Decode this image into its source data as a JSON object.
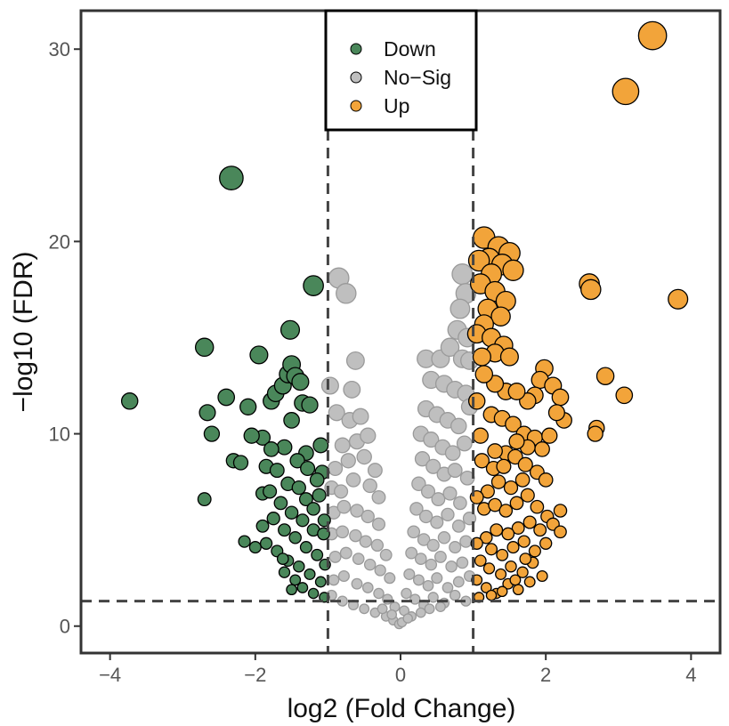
{
  "chart_data": {
    "type": "scatter",
    "subtype": "volcano",
    "title": "",
    "xlabel": "log2 (Fold Change)",
    "ylabel": "−log10 (FDR)",
    "xlim": [
      -4.4,
      4.4
    ],
    "ylim": [
      -1.4,
      32
    ],
    "xticks": [
      -4,
      -2,
      0,
      2,
      4
    ],
    "yticks": [
      0,
      10,
      20,
      30
    ],
    "x_tick_labels": [
      "−4",
      "−2",
      "0",
      "2",
      "4"
    ],
    "y_tick_labels": [
      "0",
      "10",
      "20",
      "30"
    ],
    "grid": false,
    "thresholds": {
      "log2fc": [
        -1,
        1
      ],
      "neglog10_fdr": 1.3
    },
    "legend": {
      "position": "top-center",
      "boxed": true
    },
    "colors": {
      "Down": "#4a875a",
      "No-Sig": "#bfbfbf",
      "Up": "#f2a43a",
      "outline_sig": "#000000",
      "outline_nosig": "#9a9a9a",
      "axis": "#333333",
      "threshold_line": "#444444"
    },
    "series": [
      {
        "name": "Down",
        "legend_label": "Down",
        "points": [
          [
            -3.73,
            11.7
          ],
          [
            -2.7,
            14.5
          ],
          [
            -2.66,
            11.1
          ],
          [
            -2.6,
            10.0
          ],
          [
            -2.7,
            6.6
          ],
          [
            -2.33,
            23.3
          ],
          [
            -2.4,
            11.9
          ],
          [
            -2.3,
            8.6
          ],
          [
            -2.2,
            8.5
          ],
          [
            -2.1,
            11.4
          ],
          [
            -1.95,
            14.1
          ],
          [
            -2.15,
            4.4
          ],
          [
            -2.0,
            4.1
          ],
          [
            -1.9,
            6.9
          ],
          [
            -1.85,
            8.3
          ],
          [
            -1.78,
            11.7
          ],
          [
            -1.72,
            12.1
          ],
          [
            -1.62,
            12.5
          ],
          [
            -1.55,
            13.1
          ],
          [
            -1.5,
            13.6
          ],
          [
            -1.45,
            13.0
          ],
          [
            -1.38,
            12.7
          ],
          [
            -1.52,
            15.4
          ],
          [
            -1.2,
            17.7
          ],
          [
            -1.35,
            11.6
          ],
          [
            -1.5,
            10.7
          ],
          [
            -1.25,
            11.5
          ],
          [
            -1.1,
            9.4
          ],
          [
            -1.3,
            9.0
          ],
          [
            -1.6,
            9.3
          ],
          [
            -1.7,
            8.1
          ],
          [
            -1.55,
            7.4
          ],
          [
            -1.4,
            7.2
          ],
          [
            -1.3,
            6.6
          ],
          [
            -1.2,
            6.1
          ],
          [
            -1.8,
            7.0
          ],
          [
            -1.65,
            6.4
          ],
          [
            -1.5,
            5.9
          ],
          [
            -1.35,
            5.5
          ],
          [
            -1.2,
            5.0
          ],
          [
            -1.75,
            5.6
          ],
          [
            -1.6,
            5.0
          ],
          [
            -1.45,
            4.6
          ],
          [
            -1.3,
            4.1
          ],
          [
            -1.15,
            3.7
          ],
          [
            -1.9,
            5.2
          ],
          [
            -1.85,
            4.3
          ],
          [
            -1.7,
            3.9
          ],
          [
            -1.55,
            3.4
          ],
          [
            -1.4,
            3.1
          ],
          [
            -1.25,
            2.7
          ],
          [
            -1.1,
            2.3
          ],
          [
            -1.6,
            2.8
          ],
          [
            -1.45,
            2.4
          ],
          [
            -1.35,
            2.0
          ],
          [
            -1.2,
            1.7
          ],
          [
            -1.05,
            1.5
          ],
          [
            -1.12,
            6.8
          ],
          [
            -1.08,
            8.0
          ],
          [
            -1.06,
            4.8
          ],
          [
            -1.04,
            3.2
          ],
          [
            -1.9,
            9.8
          ],
          [
            -2.05,
            9.9
          ],
          [
            -1.78,
            9.2
          ],
          [
            -1.42,
            8.6
          ],
          [
            -1.28,
            8.2
          ],
          [
            -1.15,
            7.6
          ],
          [
            -1.62,
            3.5
          ],
          [
            -1.5,
            1.9
          ],
          [
            -1.05,
            5.5
          ]
        ]
      },
      {
        "name": "No-Sig",
        "legend_label": "No−Sig",
        "points": [
          [
            -0.85,
            18.1
          ],
          [
            -0.75,
            17.3
          ],
          [
            -0.62,
            13.8
          ],
          [
            -0.67,
            12.3
          ],
          [
            -0.97,
            12.5
          ],
          [
            -0.88,
            11.1
          ],
          [
            -0.7,
            10.7
          ],
          [
            -0.55,
            10.9
          ],
          [
            -0.8,
            9.4
          ],
          [
            -0.6,
            9.6
          ],
          [
            -0.45,
            9.9
          ],
          [
            -0.9,
            8.2
          ],
          [
            -0.72,
            8.6
          ],
          [
            -0.5,
            8.8
          ],
          [
            -0.35,
            8.1
          ],
          [
            -0.95,
            7.2
          ],
          [
            -0.82,
            7.0
          ],
          [
            -0.65,
            7.6
          ],
          [
            -0.42,
            7.3
          ],
          [
            -0.3,
            6.7
          ],
          [
            -0.92,
            5.9
          ],
          [
            -0.78,
            6.2
          ],
          [
            -0.6,
            6.0
          ],
          [
            -0.45,
            5.7
          ],
          [
            -0.3,
            5.3
          ],
          [
            -0.95,
            4.8
          ],
          [
            -0.8,
            4.9
          ],
          [
            -0.62,
            4.7
          ],
          [
            -0.48,
            4.4
          ],
          [
            -0.32,
            4.2
          ],
          [
            -0.2,
            3.7
          ],
          [
            -0.9,
            3.6
          ],
          [
            -0.75,
            3.8
          ],
          [
            -0.58,
            3.5
          ],
          [
            -0.42,
            3.2
          ],
          [
            -0.28,
            2.9
          ],
          [
            -0.15,
            2.5
          ],
          [
            -0.92,
            2.4
          ],
          [
            -0.78,
            2.6
          ],
          [
            -0.6,
            2.2
          ],
          [
            -0.45,
            2.0
          ],
          [
            -0.3,
            1.7
          ],
          [
            -0.18,
            1.4
          ],
          [
            -0.08,
            1.0
          ],
          [
            -0.95,
            1.6
          ],
          [
            -0.8,
            1.3
          ],
          [
            -0.65,
            1.1
          ],
          [
            -0.5,
            0.9
          ],
          [
            -0.35,
            0.7
          ],
          [
            -0.2,
            0.5
          ],
          [
            -0.1,
            0.3
          ],
          [
            -0.02,
            0.1
          ],
          [
            -0.25,
            0.9
          ],
          [
            -0.12,
            0.6
          ],
          [
            0.85,
            18.3
          ],
          [
            0.9,
            17.3
          ],
          [
            0.82,
            16.5
          ],
          [
            0.78,
            15.4
          ],
          [
            0.92,
            15.0
          ],
          [
            0.35,
            13.9
          ],
          [
            0.55,
            13.9
          ],
          [
            0.68,
            14.5
          ],
          [
            0.85,
            13.9
          ],
          [
            0.95,
            13.8
          ],
          [
            0.42,
            12.8
          ],
          [
            0.6,
            12.6
          ],
          [
            0.75,
            12.3
          ],
          [
            0.9,
            12.1
          ],
          [
            0.35,
            11.3
          ],
          [
            0.5,
            11.0
          ],
          [
            0.65,
            10.7
          ],
          [
            0.8,
            10.4
          ],
          [
            0.95,
            11.4
          ],
          [
            0.28,
            10.0
          ],
          [
            0.42,
            9.7
          ],
          [
            0.58,
            9.3
          ],
          [
            0.72,
            9.0
          ],
          [
            0.88,
            9.5
          ],
          [
            0.3,
            8.7
          ],
          [
            0.45,
            8.3
          ],
          [
            0.6,
            7.9
          ],
          [
            0.75,
            8.1
          ],
          [
            0.92,
            7.7
          ],
          [
            0.25,
            7.4
          ],
          [
            0.38,
            7.0
          ],
          [
            0.52,
            6.6
          ],
          [
            0.68,
            6.9
          ],
          [
            0.82,
            6.4
          ],
          [
            0.22,
            6.1
          ],
          [
            0.35,
            5.7
          ],
          [
            0.5,
            5.4
          ],
          [
            0.65,
            5.8
          ],
          [
            0.8,
            5.2
          ],
          [
            0.95,
            5.6
          ],
          [
            0.18,
            4.9
          ],
          [
            0.32,
            4.5
          ],
          [
            0.45,
            4.2
          ],
          [
            0.6,
            4.6
          ],
          [
            0.75,
            4.1
          ],
          [
            0.9,
            4.4
          ],
          [
            0.15,
            3.8
          ],
          [
            0.28,
            3.5
          ],
          [
            0.42,
            3.2
          ],
          [
            0.55,
            3.6
          ],
          [
            0.7,
            3.1
          ],
          [
            0.85,
            3.3
          ],
          [
            0.12,
            2.7
          ],
          [
            0.25,
            2.4
          ],
          [
            0.38,
            2.1
          ],
          [
            0.5,
            2.5
          ],
          [
            0.65,
            2.0
          ],
          [
            0.8,
            2.3
          ],
          [
            0.95,
            2.6
          ],
          [
            0.08,
            1.7
          ],
          [
            0.2,
            1.4
          ],
          [
            0.32,
            1.1
          ],
          [
            0.45,
            1.5
          ],
          [
            0.6,
            1.2
          ],
          [
            0.75,
            1.6
          ],
          [
            0.9,
            1.3
          ],
          [
            0.05,
            0.8
          ],
          [
            0.15,
            0.5
          ],
          [
            0.28,
            0.7
          ],
          [
            0.4,
            0.9
          ],
          [
            0.02,
            0.2
          ],
          [
            0.1,
            0.4
          ],
          [
            0.55,
            1.0
          ]
        ]
      },
      {
        "name": "Up",
        "legend_label": "Up",
        "points": [
          [
            3.47,
            30.7
          ],
          [
            3.1,
            27.8
          ],
          [
            2.6,
            17.8
          ],
          [
            2.62,
            17.5
          ],
          [
            3.82,
            17.0
          ],
          [
            2.82,
            13.0
          ],
          [
            3.08,
            12.0
          ],
          [
            2.7,
            10.3
          ],
          [
            2.68,
            10.0
          ],
          [
            1.15,
            20.2
          ],
          [
            1.35,
            19.7
          ],
          [
            1.5,
            19.4
          ],
          [
            1.22,
            19.1
          ],
          [
            1.08,
            19.0
          ],
          [
            1.4,
            18.8
          ],
          [
            1.55,
            18.5
          ],
          [
            1.25,
            18.3
          ],
          [
            1.1,
            17.8
          ],
          [
            1.3,
            17.4
          ],
          [
            1.45,
            16.9
          ],
          [
            1.2,
            16.5
          ],
          [
            1.38,
            16.1
          ],
          [
            1.15,
            15.7
          ],
          [
            1.05,
            15.2
          ],
          [
            1.25,
            15.0
          ],
          [
            1.42,
            14.6
          ],
          [
            1.3,
            14.2
          ],
          [
            1.12,
            14.0
          ],
          [
            1.5,
            14.0
          ],
          [
            1.98,
            13.4
          ],
          [
            1.92,
            12.8
          ],
          [
            2.1,
            12.5
          ],
          [
            1.85,
            12.0
          ],
          [
            2.2,
            11.9
          ],
          [
            1.75,
            11.7
          ],
          [
            1.45,
            12.2
          ],
          [
            1.6,
            12.2
          ],
          [
            1.3,
            12.6
          ],
          [
            1.15,
            13.1
          ],
          [
            1.05,
            11.7
          ],
          [
            1.25,
            11.0
          ],
          [
            1.4,
            10.8
          ],
          [
            1.55,
            10.5
          ],
          [
            1.7,
            10.0
          ],
          [
            1.85,
            9.8
          ],
          [
            2.05,
            9.9
          ],
          [
            2.25,
            10.7
          ],
          [
            2.15,
            11.1
          ],
          [
            1.95,
            9.2
          ],
          [
            1.75,
            9.3
          ],
          [
            1.6,
            9.6
          ],
          [
            1.45,
            9.0
          ],
          [
            1.3,
            9.1
          ],
          [
            1.1,
            9.9
          ],
          [
            1.12,
            8.6
          ],
          [
            1.28,
            8.2
          ],
          [
            1.42,
            8.3
          ],
          [
            1.58,
            8.8
          ],
          [
            1.72,
            8.4
          ],
          [
            1.88,
            8.0
          ],
          [
            2.0,
            7.6
          ],
          [
            1.68,
            7.6
          ],
          [
            1.52,
            7.2
          ],
          [
            1.35,
            7.5
          ],
          [
            1.2,
            7.0
          ],
          [
            1.05,
            6.7
          ],
          [
            1.15,
            6.1
          ],
          [
            1.3,
            6.3
          ],
          [
            1.45,
            6.0
          ],
          [
            1.6,
            6.4
          ],
          [
            1.75,
            6.8
          ],
          [
            1.88,
            6.2
          ],
          [
            2.02,
            5.7
          ],
          [
            2.2,
            6.0
          ],
          [
            2.1,
            5.3
          ],
          [
            1.92,
            5.0
          ],
          [
            1.78,
            5.4
          ],
          [
            1.62,
            5.1
          ],
          [
            1.48,
            4.8
          ],
          [
            1.32,
            5.0
          ],
          [
            1.18,
            4.6
          ],
          [
            1.05,
            4.3
          ],
          [
            1.25,
            4.0
          ],
          [
            1.4,
            3.7
          ],
          [
            1.55,
            4.1
          ],
          [
            1.7,
            4.4
          ],
          [
            1.85,
            3.9
          ],
          [
            2.0,
            4.3
          ],
          [
            2.2,
            4.9
          ],
          [
            1.1,
            3.4
          ],
          [
            1.22,
            3.0
          ],
          [
            1.38,
            2.7
          ],
          [
            1.52,
            3.1
          ],
          [
            1.68,
            2.8
          ],
          [
            1.82,
            3.3
          ],
          [
            1.95,
            2.6
          ],
          [
            1.05,
            2.4
          ],
          [
            1.18,
            2.0
          ],
          [
            1.32,
            1.7
          ],
          [
            1.48,
            2.2
          ],
          [
            1.62,
            1.9
          ],
          [
            1.78,
            2.3
          ],
          [
            1.08,
            1.5
          ],
          [
            1.25,
            1.6
          ],
          [
            1.4,
            1.8
          ],
          [
            1.58,
            2.4
          ],
          [
            1.72,
            3.5
          ]
        ]
      }
    ]
  }
}
